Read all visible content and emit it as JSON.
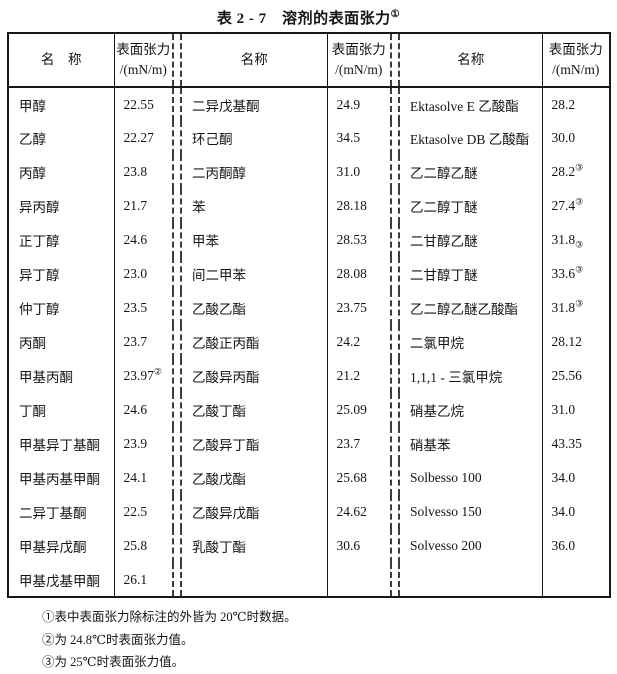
{
  "title": {
    "text": "表 2 - 7　溶剂的表面张力",
    "sup": "①"
  },
  "header": {
    "name1": "名　称",
    "name2": "名称",
    "name3": "名称",
    "tension": "表面张力",
    "unit": "/(mN/m)"
  },
  "rows": [
    [
      "甲醇",
      "22.55",
      "二异戊基酮",
      "24.9",
      "Ektasolve E 乙酸酯",
      "28.2"
    ],
    [
      "乙醇",
      "22.27",
      "环己酮",
      "34.5",
      "Ektasolve DB 乙酸酯",
      "30.0"
    ],
    [
      "丙醇",
      "23.8",
      "二丙酮醇",
      "31.0",
      "乙二醇乙醚",
      {
        "t": "28.2",
        "sup": "③"
      }
    ],
    [
      "异丙醇",
      "21.7",
      "苯",
      "28.18",
      "乙二醇丁醚",
      {
        "t": "27.4",
        "sup": "③"
      }
    ],
    [
      "正丁醇",
      "24.6",
      "甲苯",
      "28.53",
      "二甘醇乙醚",
      {
        "t": "31.8",
        "sub": "③"
      }
    ],
    [
      "异丁醇",
      "23.0",
      "间二甲苯",
      "28.08",
      "二甘醇丁醚",
      {
        "t": "33.6",
        "sup": "③"
      }
    ],
    [
      "仲丁醇",
      "23.5",
      "乙酸乙酯",
      "23.75",
      "乙二醇乙醚乙酸酯",
      {
        "t": "31.8",
        "sup": "③"
      }
    ],
    [
      "丙酮",
      "23.7",
      "乙酸正丙酯",
      "24.2",
      "二氯甲烷",
      "28.12"
    ],
    [
      "甲基丙酮",
      {
        "t": "23.97",
        "sup": "②"
      },
      "乙酸异丙酯",
      "21.2",
      "1,1,1 - 三氯甲烷",
      "25.56"
    ],
    [
      "丁酮",
      "24.6",
      "乙酸丁酯",
      "25.09",
      "硝基乙烷",
      "31.0"
    ],
    [
      "甲基异丁基酮",
      "23.9",
      "乙酸异丁酯",
      "23.7",
      "硝基苯",
      "43.35"
    ],
    [
      "甲基丙基甲酮",
      "24.1",
      "乙酸戊酯",
      "25.68",
      "Solbesso 100",
      "34.0"
    ],
    [
      "二异丁基酮",
      "22.5",
      "乙酸异戊酯",
      "24.62",
      "Solvesso 150",
      "34.0"
    ],
    [
      "甲基异戊酮",
      "25.8",
      "乳酸丁酯",
      "30.6",
      "Solvesso 200",
      "36.0"
    ],
    [
      "甲基戊基甲酮",
      "26.1",
      "",
      "",
      "",
      ""
    ]
  ],
  "notes": [
    "①表中表面张力除标注的外皆为 20℃时数据。",
    "②为 24.8℃时表面张力值。",
    "③为 25℃时表面张力值。"
  ]
}
